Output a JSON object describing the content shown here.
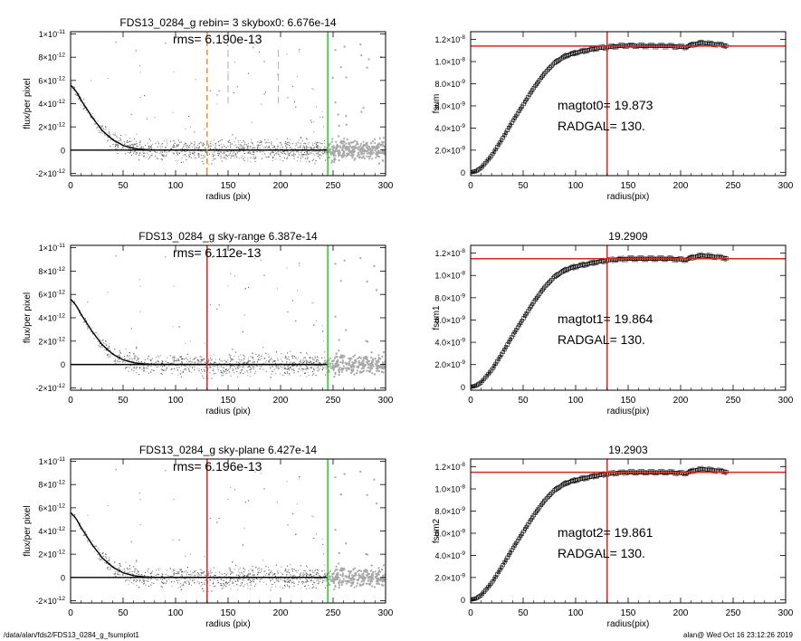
{
  "footer": {
    "path": "/data/alan/fds2/FDS13_0284_g_fsumplot1",
    "stamp": "alan@  Wed Oct 16 23:12:26 2019"
  },
  "colors": {
    "sky_edge": "#22cc22",
    "radius_marker": "#dd2222",
    "dash_marker": "#e8922a",
    "total_line": "#dd2222",
    "scatter": "#999999"
  },
  "chart_data": [
    {
      "id": "p1",
      "type": "scatter",
      "title": "FDS13_0284_g rebin= 3    skybox0:  6.676e-14",
      "annotation": "rms= 6.190e-13",
      "xlabel": "radius (pix)",
      "ylabel": "flux/per pixel",
      "xlim": [
        0,
        300
      ],
      "ylim": [
        -2.2e-12,
        1.02e-11
      ],
      "xticks": [
        0,
        50,
        100,
        150,
        200,
        250,
        300
      ],
      "xtick_labels": [
        "0",
        "50",
        "100",
        "150",
        "200",
        "250",
        "300"
      ],
      "yticks": [
        -2e-12,
        0,
        2e-12,
        4e-12,
        6e-12,
        8e-12,
        1e-11
      ],
      "ytick_labels": [
        [
          "-2×10",
          "-12"
        ],
        [
          "0",
          ""
        ],
        [
          "2×10",
          "-12"
        ],
        [
          "4×10",
          "-12"
        ],
        [
          "6×10",
          "-12"
        ],
        [
          "8×10",
          "-12"
        ],
        [
          "1×10",
          "-11"
        ]
      ],
      "profile": [
        [
          0,
          5.6e-12
        ],
        [
          5,
          5.1e-12
        ],
        [
          10,
          4.3e-12
        ],
        [
          20,
          2.9e-12
        ],
        [
          30,
          1.7e-12
        ],
        [
          40,
          9e-13
        ],
        [
          50,
          4e-13
        ],
        [
          60,
          1.5e-13
        ],
        [
          70,
          5e-14
        ],
        [
          80,
          1e-14
        ],
        [
          100,
          0
        ],
        [
          150,
          0
        ],
        [
          200,
          0
        ],
        [
          245,
          0
        ]
      ],
      "zero_line": 0,
      "markers": {
        "radius_orange_dashed": 130,
        "gray_dashed": [
          150,
          198
        ],
        "sky_green": 245
      }
    },
    {
      "id": "p2",
      "type": "scatter",
      "title": "FDS13_0284_g sky-range  6.387e-14",
      "annotation": "rms= 6.112e-13",
      "xlabel": "radius (pix)",
      "ylabel": "flux/per pixel",
      "xlim": [
        0,
        300
      ],
      "ylim": [
        -2.2e-12,
        1.02e-11
      ],
      "xticks": [
        0,
        50,
        100,
        150,
        200,
        250,
        300
      ],
      "xtick_labels": [
        "0",
        "50",
        "100",
        "150",
        "200",
        "250",
        "300"
      ],
      "yticks": [
        -2e-12,
        0,
        2e-12,
        4e-12,
        6e-12,
        8e-12,
        1e-11
      ],
      "ytick_labels": [
        [
          "-2×10",
          "-12"
        ],
        [
          "0",
          ""
        ],
        [
          "2×10",
          "-12"
        ],
        [
          "4×10",
          "-12"
        ],
        [
          "6×10",
          "-12"
        ],
        [
          "8×10",
          "-12"
        ],
        [
          "1×10",
          "-11"
        ]
      ],
      "profile": [
        [
          0,
          5.6e-12
        ],
        [
          5,
          5.1e-12
        ],
        [
          10,
          4.3e-12
        ],
        [
          20,
          2.9e-12
        ],
        [
          30,
          1.7e-12
        ],
        [
          40,
          9e-13
        ],
        [
          50,
          4e-13
        ],
        [
          60,
          1.5e-13
        ],
        [
          70,
          5e-14
        ],
        [
          80,
          1e-14
        ],
        [
          100,
          0
        ],
        [
          150,
          0
        ],
        [
          200,
          0
        ],
        [
          245,
          0
        ]
      ],
      "zero_line": 0,
      "markers": {
        "radius_red": 130,
        "sky_green": 245
      }
    },
    {
      "id": "p3",
      "type": "scatter",
      "title": "FDS13_0284_g sky-plane  6.427e-14",
      "annotation": "rms= 6.196e-13",
      "xlabel": "radius (pix)",
      "ylabel": "flux/per pixel",
      "xlim": [
        0,
        300
      ],
      "ylim": [
        -2.2e-12,
        1.02e-11
      ],
      "xticks": [
        0,
        50,
        100,
        150,
        200,
        250,
        300
      ],
      "xtick_labels": [
        "0",
        "50",
        "100",
        "150",
        "200",
        "250",
        "300"
      ],
      "yticks": [
        -2e-12,
        0,
        2e-12,
        4e-12,
        6e-12,
        8e-12,
        1e-11
      ],
      "ytick_labels": [
        [
          "-2×10",
          "-12"
        ],
        [
          "0",
          ""
        ],
        [
          "2×10",
          "-12"
        ],
        [
          "4×10",
          "-12"
        ],
        [
          "6×10",
          "-12"
        ],
        [
          "8×10",
          "-12"
        ],
        [
          "1×10",
          "-11"
        ]
      ],
      "profile": [
        [
          0,
          5.6e-12
        ],
        [
          5,
          5.1e-12
        ],
        [
          10,
          4.3e-12
        ],
        [
          20,
          2.9e-12
        ],
        [
          30,
          1.7e-12
        ],
        [
          40,
          9e-13
        ],
        [
          50,
          4e-13
        ],
        [
          60,
          1.5e-13
        ],
        [
          70,
          5e-14
        ],
        [
          80,
          1e-14
        ],
        [
          100,
          0
        ],
        [
          150,
          0
        ],
        [
          200,
          0
        ],
        [
          245,
          0
        ]
      ],
      "zero_line": 0,
      "markers": {
        "radius_red": 130,
        "sky_green": 245
      }
    },
    {
      "id": "p4",
      "type": "line",
      "title": "",
      "annotations": [
        "magtot0=  19.873",
        "RADGAL=    130."
      ],
      "xlabel": "radius(pix)",
      "ylabel": "fsum",
      "xlim": [
        0,
        300
      ],
      "ylim": [
        -3e-10,
        1.27e-08
      ],
      "xticks": [
        0,
        50,
        100,
        150,
        200,
        250,
        300
      ],
      "xtick_labels": [
        "0",
        "50",
        "100",
        "150",
        "200",
        "250",
        "300"
      ],
      "yticks": [
        0,
        2e-09,
        4e-09,
        6e-09,
        8e-09,
        1e-08,
        1.2e-08
      ],
      "ytick_labels": [
        [
          "0",
          ""
        ],
        [
          "2.0×10",
          "-9"
        ],
        [
          "4.0×10",
          "-9"
        ],
        [
          "6.0×10",
          "-9"
        ],
        [
          "8.0×10",
          "-9"
        ],
        [
          "1.0×10",
          "-8"
        ],
        [
          "1.2×10",
          "-8"
        ]
      ],
      "growth_curve": [
        [
          0,
          0
        ],
        [
          5,
          1e-10
        ],
        [
          10,
          4e-10
        ],
        [
          20,
          1.5e-09
        ],
        [
          30,
          3e-09
        ],
        [
          40,
          4.6e-09
        ],
        [
          50,
          6.1e-09
        ],
        [
          60,
          7.6e-09
        ],
        [
          70,
          8.9e-09
        ],
        [
          80,
          9.9e-09
        ],
        [
          90,
          1.05e-08
        ],
        [
          100,
          1.08e-08
        ],
        [
          110,
          1.1e-08
        ],
        [
          120,
          1.12e-08
        ],
        [
          130,
          1.13e-08
        ],
        [
          140,
          1.14e-08
        ],
        [
          150,
          1.145e-08
        ],
        [
          170,
          1.14e-08
        ],
        [
          190,
          1.14e-08
        ],
        [
          205,
          1.13e-08
        ],
        [
          210,
          1.15e-08
        ],
        [
          220,
          1.17e-08
        ],
        [
          230,
          1.16e-08
        ],
        [
          240,
          1.15e-08
        ],
        [
          245,
          1.14e-08
        ]
      ],
      "total_level": 1.14e-08,
      "radgal": 130
    },
    {
      "id": "p5",
      "type": "line",
      "title": "19.2909",
      "annotations": [
        "magtot1=  19.864",
        "RADGAL=    130."
      ],
      "xlabel": "radius(pix)",
      "ylabel": "fsum1",
      "xlim": [
        0,
        300
      ],
      "ylim": [
        -3e-10,
        1.27e-08
      ],
      "xticks": [
        0,
        50,
        100,
        150,
        200,
        250,
        300
      ],
      "xtick_labels": [
        "0",
        "50",
        "100",
        "150",
        "200",
        "250",
        "300"
      ],
      "yticks": [
        0,
        2e-09,
        4e-09,
        6e-09,
        8e-09,
        1e-08,
        1.2e-08
      ],
      "ytick_labels": [
        [
          "0",
          ""
        ],
        [
          "2.0×10",
          "-9"
        ],
        [
          "4.0×10",
          "-9"
        ],
        [
          "6.0×10",
          "-9"
        ],
        [
          "8.0×10",
          "-9"
        ],
        [
          "1.0×10",
          "-8"
        ],
        [
          "1.2×10",
          "-8"
        ]
      ],
      "growth_curve": [
        [
          0,
          0
        ],
        [
          5,
          1e-10
        ],
        [
          10,
          4e-10
        ],
        [
          20,
          1.5e-09
        ],
        [
          30,
          3e-09
        ],
        [
          40,
          4.6e-09
        ],
        [
          50,
          6.1e-09
        ],
        [
          60,
          7.6e-09
        ],
        [
          70,
          8.9e-09
        ],
        [
          80,
          9.9e-09
        ],
        [
          90,
          1.05e-08
        ],
        [
          100,
          1.08e-08
        ],
        [
          110,
          1.1e-08
        ],
        [
          120,
          1.12e-08
        ],
        [
          130,
          1.135e-08
        ],
        [
          140,
          1.145e-08
        ],
        [
          150,
          1.15e-08
        ],
        [
          170,
          1.15e-08
        ],
        [
          190,
          1.15e-08
        ],
        [
          205,
          1.14e-08
        ],
        [
          210,
          1.16e-08
        ],
        [
          220,
          1.18e-08
        ],
        [
          230,
          1.17e-08
        ],
        [
          240,
          1.16e-08
        ],
        [
          245,
          1.15e-08
        ]
      ],
      "total_level": 1.15e-08,
      "radgal": 130
    },
    {
      "id": "p6",
      "type": "line",
      "title": "19.2903",
      "annotations": [
        "magtot2=  19.861",
        "RADGAL=    130."
      ],
      "xlabel": "radius(pix)",
      "ylabel": "fsum2",
      "xlim": [
        0,
        300
      ],
      "ylim": [
        -3e-10,
        1.27e-08
      ],
      "xticks": [
        0,
        50,
        100,
        150,
        200,
        250,
        300
      ],
      "xtick_labels": [
        "0",
        "50",
        "100",
        "150",
        "200",
        "250",
        "300"
      ],
      "yticks": [
        0,
        2e-09,
        4e-09,
        6e-09,
        8e-09,
        1e-08,
        1.2e-08
      ],
      "ytick_labels": [
        [
          "0",
          ""
        ],
        [
          "2.0×10",
          "-9"
        ],
        [
          "4.0×10",
          "-9"
        ],
        [
          "6.0×10",
          "-9"
        ],
        [
          "8.0×10",
          "-9"
        ],
        [
          "1.0×10",
          "-8"
        ],
        [
          "1.2×10",
          "-8"
        ]
      ],
      "growth_curve": [
        [
          0,
          0
        ],
        [
          5,
          1e-10
        ],
        [
          10,
          4e-10
        ],
        [
          20,
          1.5e-09
        ],
        [
          30,
          3e-09
        ],
        [
          40,
          4.6e-09
        ],
        [
          50,
          6.1e-09
        ],
        [
          60,
          7.6e-09
        ],
        [
          70,
          8.9e-09
        ],
        [
          80,
          9.9e-09
        ],
        [
          90,
          1.05e-08
        ],
        [
          100,
          1.08e-08
        ],
        [
          110,
          1.1e-08
        ],
        [
          120,
          1.12e-08
        ],
        [
          130,
          1.135e-08
        ],
        [
          140,
          1.145e-08
        ],
        [
          150,
          1.15e-08
        ],
        [
          170,
          1.15e-08
        ],
        [
          190,
          1.15e-08
        ],
        [
          205,
          1.14e-08
        ],
        [
          210,
          1.16e-08
        ],
        [
          220,
          1.18e-08
        ],
        [
          230,
          1.17e-08
        ],
        [
          240,
          1.16e-08
        ],
        [
          245,
          1.15e-08
        ]
      ],
      "total_level": 1.15e-08,
      "radgal": 130
    }
  ]
}
